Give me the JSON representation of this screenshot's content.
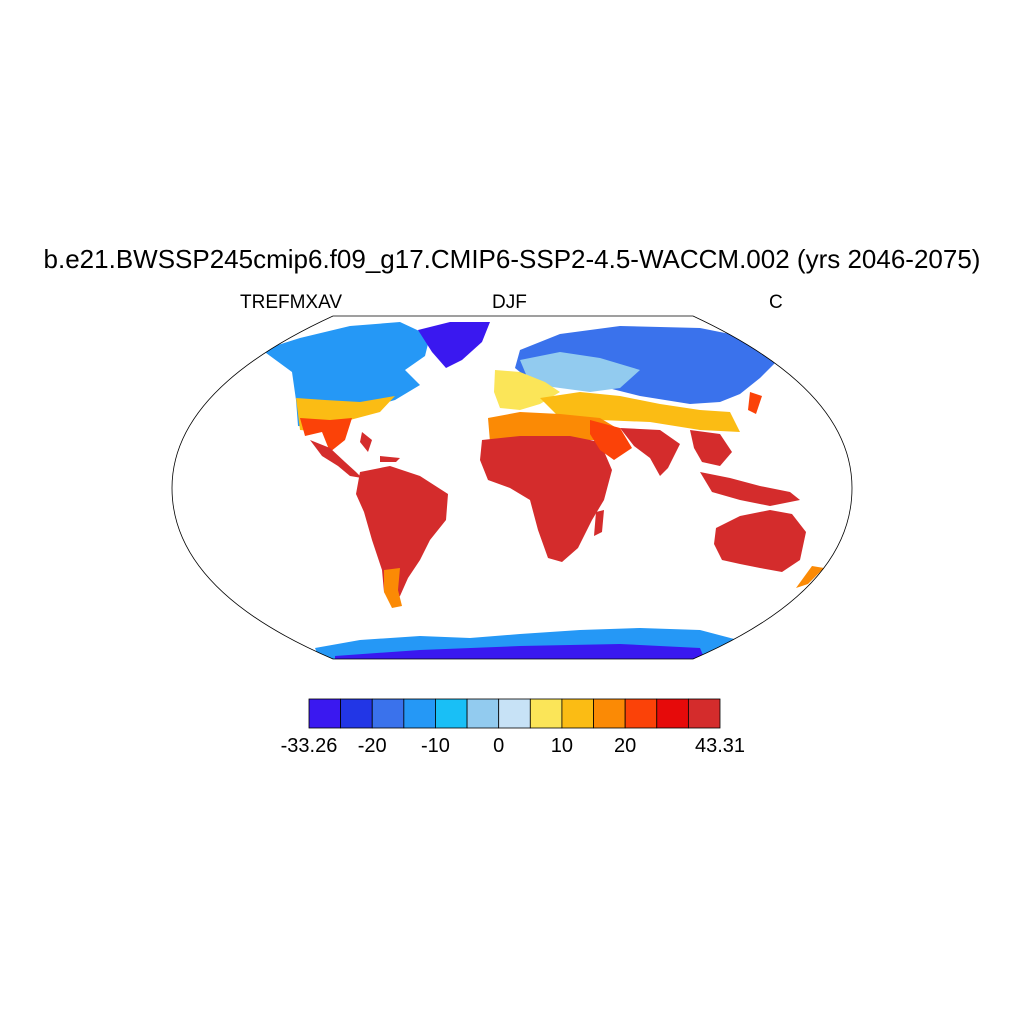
{
  "plot": {
    "title": "b.e21.BWSSP245cmip6.f09_g17.CMIP6-SSP2-4.5-WACCM.002 (yrs 2046-2075)",
    "left_label": "TREFMXAV",
    "center_label": "DJF",
    "right_label": "C"
  },
  "map": {
    "projection": "Robinson",
    "field": "TREFMXAV",
    "season": "DJF",
    "units": "C"
  },
  "colorbar": {
    "colors": [
      "#3a18f0",
      "#2236e6",
      "#3a72ec",
      "#2598f6",
      "#19bff6",
      "#92cbef",
      "#c7e2f6",
      "#fbe558",
      "#fbbc14",
      "#fb8a05",
      "#fb4208",
      "#e60a0a",
      "#d42c2c"
    ],
    "tick_labels": [
      "-33.26",
      "-20",
      "-10",
      "0",
      "10",
      "20",
      "43.31"
    ],
    "min": -33.26,
    "max": 43.31
  }
}
